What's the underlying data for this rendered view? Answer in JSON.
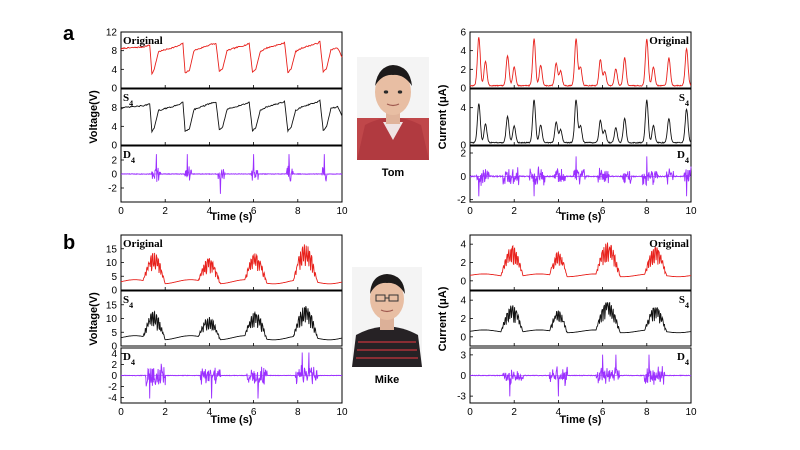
{
  "colors": {
    "original": "#e8211c",
    "s4": "#111111",
    "d4": "#9b30ff"
  },
  "panels": [
    {
      "label": "a",
      "person": {
        "name": "Tom",
        "icon": "person-photo-icon"
      }
    },
    {
      "label": "b",
      "person": {
        "name": "Mike",
        "icon": "person-photo-icon"
      }
    }
  ],
  "chart_data": [
    {
      "type": "line",
      "panel": "a",
      "side": "left",
      "xlabel": "Time (s)",
      "ylabel": "Voltage(V)",
      "xlim": [
        0,
        10
      ],
      "xticks": [
        0,
        2,
        4,
        6,
        8,
        10
      ],
      "series": [
        {
          "name": "Original",
          "ylim": [
            0,
            12
          ],
          "yticks": [
            0,
            4,
            8,
            12
          ],
          "ytick_labels": [
            "0",
            "4",
            "8",
            "12"
          ],
          "color": "#e8211c",
          "x": [
            0,
            0.1,
            1.0,
            1.3,
            1.4,
            1.5,
            1.7,
            2.6,
            2.8,
            2.9,
            3.1,
            3.3,
            4.1,
            4.3,
            4.45,
            4.6,
            4.8,
            5.1,
            5.7,
            5.8,
            5.95,
            6.1,
            6.3,
            6.6,
            7.3,
            7.4,
            7.55,
            7.7,
            7.9,
            8.2,
            8.9,
            9.0,
            9.15,
            9.3,
            9.5,
            9.8,
            10.0
          ],
          "values": [
            8.3,
            8.5,
            8.8,
            9.2,
            3.0,
            4.0,
            7.8,
            9.0,
            9.6,
            3.2,
            3.8,
            8.0,
            9.4,
            9.5,
            3.5,
            4.2,
            8.0,
            8.5,
            9.3,
            9.6,
            3.4,
            4.0,
            7.8,
            8.6,
            9.5,
            9.8,
            3.3,
            4.1,
            7.8,
            8.6,
            9.6,
            10.0,
            3.4,
            4.2,
            8.2,
            8.6,
            6.6
          ]
        },
        {
          "name": "S4",
          "ylim": [
            0,
            12
          ],
          "yticks": [
            0,
            4,
            8,
            12
          ],
          "ytick_labels": [
            "0",
            "4",
            "8",
            ""
          ],
          "color": "#111111",
          "x": [
            0,
            0.1,
            1.0,
            1.3,
            1.4,
            1.5,
            1.7,
            2.6,
            2.8,
            2.9,
            3.1,
            3.3,
            4.1,
            4.3,
            4.45,
            4.6,
            4.8,
            5.1,
            5.7,
            5.8,
            5.95,
            6.1,
            6.3,
            6.6,
            7.3,
            7.4,
            7.55,
            7.7,
            7.9,
            8.2,
            8.9,
            9.0,
            9.15,
            9.3,
            9.5,
            9.8,
            10.0
          ],
          "values": [
            7.8,
            8.0,
            8.4,
            8.8,
            2.8,
            3.6,
            7.4,
            8.6,
            9.2,
            3.0,
            3.5,
            7.6,
            9.0,
            9.1,
            3.2,
            3.9,
            7.6,
            8.1,
            8.9,
            9.2,
            3.1,
            3.7,
            7.4,
            8.2,
            9.1,
            9.4,
            3.0,
            3.8,
            7.4,
            8.2,
            9.2,
            9.6,
            3.1,
            3.9,
            7.8,
            8.2,
            6.2
          ]
        },
        {
          "name": "D4",
          "ylim": [
            -4,
            4
          ],
          "yticks": [
            -2,
            0,
            2
          ],
          "ytick_labels": [
            "-2",
            "0",
            "2"
          ],
          "color": "#9b30ff",
          "bursts": [
            [
              1.4,
              1.8
            ],
            [
              2.9,
              3.2
            ],
            [
              4.4,
              4.7
            ],
            [
              5.9,
              6.2
            ],
            [
              7.5,
              7.8
            ],
            [
              9.1,
              9.3
            ]
          ],
          "amplitude": 1.5,
          "spikes": [
            1.6,
            3.0,
            4.5,
            6.0,
            7.6,
            9.2
          ]
        }
      ]
    },
    {
      "type": "line",
      "panel": "a",
      "side": "right",
      "xlabel": "Time (s)",
      "ylabel": "Current (μA)",
      "xlim": [
        0,
        10
      ],
      "xticks": [
        0,
        2,
        4,
        6,
        8,
        10
      ],
      "series": [
        {
          "name": "Original",
          "ylim": [
            0,
            6
          ],
          "yticks": [
            0,
            2,
            4,
            6
          ],
          "ytick_labels": [
            "0",
            "2",
            "4",
            "6"
          ],
          "color": "#e8211c",
          "peaks": [
            [
              0.4,
              5.2
            ],
            [
              0.7,
              2.6
            ],
            [
              1.7,
              3.2
            ],
            [
              2.0,
              2.0
            ],
            [
              2.9,
              5.0
            ],
            [
              3.2,
              2.2
            ],
            [
              3.9,
              2.4
            ],
            [
              4.1,
              1.6
            ],
            [
              4.8,
              5.0
            ],
            [
              5.0,
              2.0
            ],
            [
              5.9,
              2.8
            ],
            [
              6.1,
              1.5
            ],
            [
              6.6,
              1.8
            ],
            [
              7.0,
              3.0
            ],
            [
              8.0,
              5.0
            ],
            [
              8.3,
              2.0
            ],
            [
              9.0,
              3.0
            ],
            [
              9.8,
              4.0
            ]
          ]
        },
        {
          "name": "S4",
          "ylim": [
            0,
            6
          ],
          "yticks": [
            0,
            4
          ],
          "ytick_labels": [
            "0",
            "4"
          ],
          "color": "#111111",
          "peaks": [
            [
              0.4,
              4.2
            ],
            [
              0.7,
              2.0
            ],
            [
              1.7,
              2.8
            ],
            [
              2.0,
              1.8
            ],
            [
              2.9,
              4.6
            ],
            [
              3.2,
              1.9
            ],
            [
              3.9,
              2.2
            ],
            [
              4.1,
              1.4
            ],
            [
              4.8,
              4.6
            ],
            [
              5.0,
              1.8
            ],
            [
              5.9,
              2.4
            ],
            [
              6.1,
              1.3
            ],
            [
              6.6,
              1.6
            ],
            [
              7.0,
              2.6
            ],
            [
              8.0,
              4.6
            ],
            [
              8.3,
              1.8
            ],
            [
              9.0,
              2.6
            ],
            [
              9.8,
              3.6
            ]
          ]
        },
        {
          "name": "D4",
          "ylim": [
            -2.2,
            2.6
          ],
          "yticks": [
            -2,
            0,
            2
          ],
          "ytick_labels": [
            "-2",
            "0",
            "2"
          ],
          "color": "#9b30ff",
          "bursts": [
            [
              0.3,
              0.9
            ],
            [
              1.5,
              2.2
            ],
            [
              2.7,
              3.4
            ],
            [
              3.8,
              4.3
            ],
            [
              4.7,
              5.2
            ],
            [
              5.8,
              6.3
            ],
            [
              6.9,
              7.3
            ],
            [
              7.8,
              8.5
            ],
            [
              8.9,
              9.2
            ],
            [
              9.7,
              10.0
            ]
          ],
          "amplitude": 0.9,
          "spikes": [
            0.4,
            2.9,
            4.8,
            8.0,
            9.8
          ]
        }
      ]
    },
    {
      "type": "line",
      "panel": "b",
      "side": "left",
      "xlabel": "Time (s)",
      "ylabel": "Voltage(V)",
      "xlim": [
        0,
        10
      ],
      "xticks": [
        0,
        2,
        4,
        6,
        8,
        10
      ],
      "series": [
        {
          "name": "Original",
          "ylim": [
            0,
            20
          ],
          "yticks": [
            0,
            5,
            10,
            15
          ],
          "ytick_labels": [
            "0",
            "5",
            "10",
            "15"
          ],
          "color": "#e8211c",
          "bursts": [
            [
              1.0,
              2.0,
              14
            ],
            [
              3.5,
              4.5,
              12
            ],
            [
              5.6,
              6.6,
              13
            ],
            [
              7.8,
              8.9,
              16
            ]
          ],
          "baseline": 3
        },
        {
          "name": "S4",
          "ylim": [
            0,
            20
          ],
          "yticks": [
            0,
            5,
            10,
            15
          ],
          "ytick_labels": [
            "0",
            "5",
            "10",
            "15"
          ],
          "color": "#111111",
          "bursts": [
            [
              1.0,
              2.0,
              13
            ],
            [
              3.5,
              4.5,
              11
            ],
            [
              5.6,
              6.6,
              12
            ],
            [
              7.8,
              8.9,
              14
            ]
          ],
          "baseline": 3
        },
        {
          "name": "D4",
          "ylim": [
            -5,
            5
          ],
          "yticks": [
            -4,
            -2,
            0,
            2,
            4
          ],
          "ytick_labels": [
            "-4",
            "-2",
            "0",
            "2",
            "4"
          ],
          "color": "#9b30ff",
          "bursts": [
            [
              1.1,
              2.0
            ],
            [
              3.6,
              4.5
            ],
            [
              5.7,
              6.6
            ],
            [
              7.9,
              8.9
            ]
          ],
          "amplitude": 2.2,
          "spikes": [
            1.3,
            4.1,
            6.2,
            8.2,
            8.5
          ]
        }
      ]
    },
    {
      "type": "line",
      "panel": "b",
      "side": "right",
      "xlabel": "Time (s)",
      "ylabel": "Current (μA)",
      "xlim": [
        0,
        10
      ],
      "xticks": [
        0,
        2,
        4,
        6,
        8,
        10
      ],
      "series": [
        {
          "name": "Original",
          "ylim": [
            -1,
            5
          ],
          "yticks": [
            0,
            2,
            4
          ],
          "ytick_labels": [
            "0",
            "2",
            "4"
          ],
          "color": "#e8211c",
          "bursts": [
            [
              1.4,
              2.4,
              4.0
            ],
            [
              3.6,
              4.4,
              3.2
            ],
            [
              5.7,
              6.8,
              4.2
            ],
            [
              7.9,
              8.9,
              3.6
            ]
          ],
          "baseline": 0.6
        },
        {
          "name": "S4",
          "ylim": [
            -1,
            5
          ],
          "yticks": [
            0,
            2,
            4
          ],
          "ytick_labels": [
            "0",
            "2",
            "4"
          ],
          "color": "#111111",
          "bursts": [
            [
              1.4,
              2.4,
              3.6
            ],
            [
              3.6,
              4.4,
              3.0
            ],
            [
              5.7,
              6.8,
              3.8
            ],
            [
              7.9,
              8.9,
              3.2
            ]
          ],
          "baseline": 0.6
        },
        {
          "name": "D4",
          "ylim": [
            -4,
            4
          ],
          "yticks": [
            -3,
            0,
            3
          ],
          "ytick_labels": [
            "-3",
            "0",
            "3"
          ],
          "color": "#9b30ff",
          "bursts": [
            [
              1.5,
              2.4
            ],
            [
              3.6,
              4.4
            ],
            [
              5.7,
              6.8
            ],
            [
              7.9,
              8.8
            ]
          ],
          "amplitude": 1.6,
          "spikes": [
            1.8,
            4.0,
            6.0,
            6.6,
            8.1
          ]
        }
      ]
    }
  ]
}
